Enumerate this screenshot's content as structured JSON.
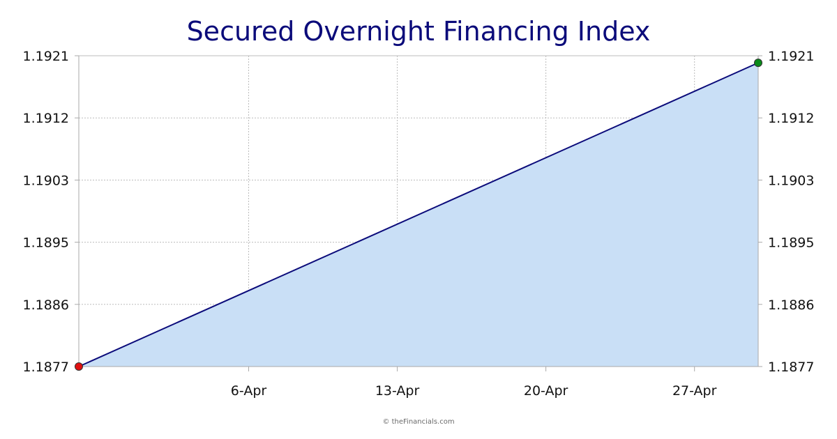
{
  "chart_data": {
    "type": "area",
    "title": "Secured Overnight Financing Index",
    "xlabel": "",
    "ylabel": "",
    "x_range": [
      "2024-03-29",
      "2024-04-30"
    ],
    "x_ticks": [
      {
        "date": "2024-04-06",
        "label": "6-Apr"
      },
      {
        "date": "2024-04-13",
        "label": "13-Apr"
      },
      {
        "date": "2024-04-20",
        "label": "20-Apr"
      },
      {
        "date": "2024-04-27",
        "label": "27-Apr"
      }
    ],
    "y_ticks": [
      "1.1877",
      "1.1886",
      "1.1895",
      "1.1903",
      "1.1912",
      "1.1921"
    ],
    "ylim": [
      1.1877,
      1.1921
    ],
    "grid": true,
    "series": [
      {
        "points": [
          {
            "x": "2024-03-29",
            "y": 1.1877
          },
          {
            "x": "2024-04-30",
            "y": 1.192
          }
        ]
      }
    ],
    "markers": {
      "start": {
        "x": "2024-03-29",
        "y": 1.1877,
        "color": "#e01010"
      },
      "end": {
        "x": "2024-04-30",
        "y": 1.192,
        "color": "#0a8a1a"
      }
    },
    "colors": {
      "line": "#0b0b7a",
      "fill": "#c9dff6",
      "grid": "#bbbbbb",
      "axis": "#aaaaaa",
      "title": "#0b0b7a"
    }
  },
  "credit": "© theFinancials.com"
}
